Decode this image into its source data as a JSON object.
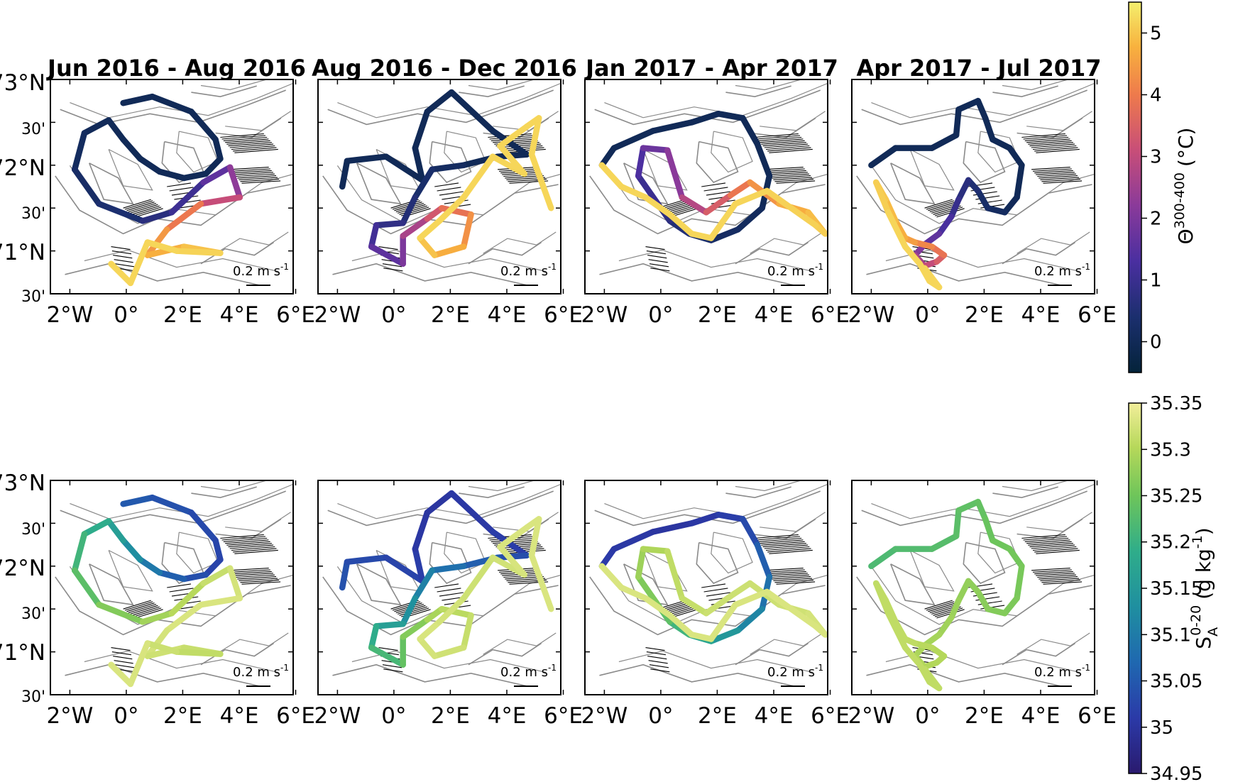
{
  "chart_data": [
    {
      "type": "map",
      "variable": "Θ^300-400",
      "colormap": "thermal",
      "colorbar": {
        "range": [
          -0.5,
          5.5
        ],
        "ticks": [
          0,
          1,
          2,
          3,
          4,
          5
        ],
        "label_main": "Θ",
        "label_sup": "300-400",
        "label_unit": "(°C)"
      },
      "panels": [
        {
          "title": "Jun 2016 - Aug 2016",
          "scale_label": "0.2 m s-1"
        },
        {
          "title": "Aug 2016 - Dec 2016",
          "scale_label": "0.2 m s-1"
        },
        {
          "title": "Jan 2017 - Apr 2017",
          "scale_label": "0.2 m s-1"
        },
        {
          "title": "Apr 2017 - Jul 2017",
          "scale_label": "0.2 m s-1"
        }
      ]
    },
    {
      "type": "map",
      "variable": "S_A^0-20",
      "colormap": "haline",
      "colorbar": {
        "range": [
          34.95,
          35.35
        ],
        "ticks": [
          34.95,
          35.0,
          35.05,
          35.1,
          35.15,
          35.2,
          35.25,
          35.3,
          35.35
        ],
        "label_main": "S",
        "label_sub": "A",
        "label_sup": "0-20",
        "label_unit": "(g kg",
        "label_unit_sup": "-1",
        "label_unit_end": ")"
      },
      "panels": [
        {
          "scale_label": "0.2 m s-1"
        },
        {
          "scale_label": "0.2 m s-1"
        },
        {
          "scale_label": "0.2 m s-1"
        },
        {
          "scale_label": "0.2 m s-1"
        }
      ]
    }
  ],
  "axes": {
    "x_ticks": [
      "2°W",
      "0°",
      "2°E",
      "4°E",
      "6°E"
    ],
    "y_ticks_major": [
      "73°N",
      "72°N",
      "71°N"
    ],
    "y_ticks_minor": [
      "30'",
      "30'",
      "30'"
    ],
    "lon_range": [
      -3,
      6
    ],
    "lat_range": [
      70.5,
      73
    ]
  },
  "top_row_track_values": [
    [
      0,
      0,
      0,
      0,
      0,
      0,
      0.2,
      0.5,
      1.2,
      2.5,
      4.2,
      4.8,
      5.2,
      5.2,
      5.2
    ],
    [
      0,
      0,
      0,
      0,
      0,
      0.4,
      1.0,
      2.0,
      3.5,
      4.6,
      5.2,
      5.2,
      5.2,
      5.2,
      5.2
    ],
    [
      0,
      0,
      0,
      0,
      0.2,
      0.6,
      1.2,
      2.2,
      3.6,
      4.6,
      5.1,
      5.2,
      5.2,
      5.2,
      5.2
    ],
    [
      0,
      0,
      0,
      0,
      0,
      0.3,
      0.8,
      1.6,
      2.8,
      3.8,
      4.6,
      5.0,
      5.2,
      5.2,
      5.2
    ]
  ],
  "bottom_row_track_values": [
    [
      35.05,
      35.03,
      35.02,
      35.05,
      35.12,
      35.18,
      35.22,
      35.28,
      35.31,
      35.33,
      35.33,
      35.32,
      35.31,
      35.33,
      35.33
    ],
    [
      35.04,
      35.02,
      35.0,
      35.01,
      35.06,
      35.12,
      35.18,
      35.24,
      35.3,
      35.32,
      35.33,
      35.32,
      35.33,
      35.33,
      35.33
    ],
    [
      35.01,
      35.0,
      35.02,
      35.08,
      35.15,
      35.22,
      35.28,
      35.31,
      35.32,
      35.32,
      35.33,
      35.33,
      35.33,
      35.33,
      35.33
    ],
    [
      35.22,
      35.23,
      35.24,
      35.25,
      35.26,
      35.27,
      35.28,
      35.29,
      35.3,
      35.3,
      35.31,
      35.31,
      35.31,
      35.31,
      35.31
    ]
  ]
}
